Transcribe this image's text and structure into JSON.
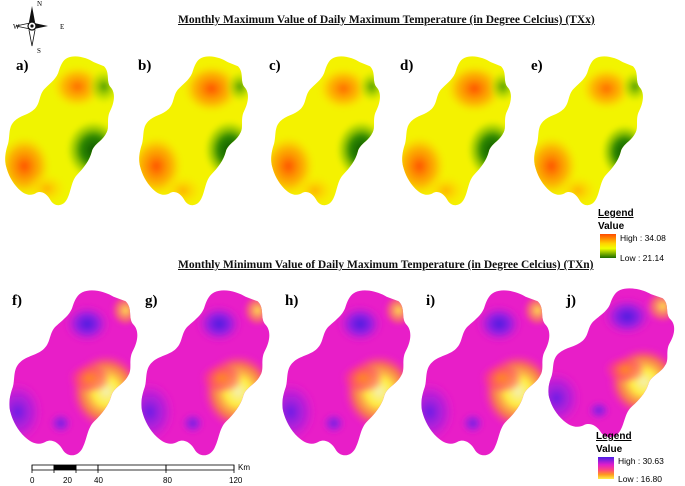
{
  "title_top": "Monthly Maximum Value of Daily Maximum Temperature (in Degree Celcius) (TXx)",
  "title_bottom": "Monthly Minimum Value of Daily Maximum Temperature (in Degree Celcius) (TXn)",
  "compass": {
    "n": "N",
    "s": "S",
    "e": "E",
    "w": "W"
  },
  "panels_top": [
    {
      "label": "a)"
    },
    {
      "label": "b)"
    },
    {
      "label": "c)"
    },
    {
      "label": "d)"
    },
    {
      "label": "e)"
    }
  ],
  "panels_bottom": [
    {
      "label": "f)"
    },
    {
      "label": "g)"
    },
    {
      "label": "h)"
    },
    {
      "label": "i)"
    },
    {
      "label": "j)"
    }
  ],
  "legend_top": {
    "title": "Legend",
    "subtitle": "Value",
    "high": "High : 34.08",
    "low": "Low : 21.14",
    "colors": [
      "#ff5a00",
      "#ffd400",
      "#f6ff00",
      "#2e8b00",
      "#1a5f00"
    ]
  },
  "legend_bottom": {
    "title": "Legend",
    "subtitle": "Value",
    "high": "High : 30.63",
    "low": "Low : 16.80",
    "colors": [
      "#5a1ee6",
      "#e61ec8",
      "#ff3b8a",
      "#ff9a1e",
      "#fff04a"
    ]
  },
  "scale_bar": {
    "unit": "Km",
    "ticks": [
      "0",
      "20",
      "40",
      "80",
      "120"
    ]
  }
}
